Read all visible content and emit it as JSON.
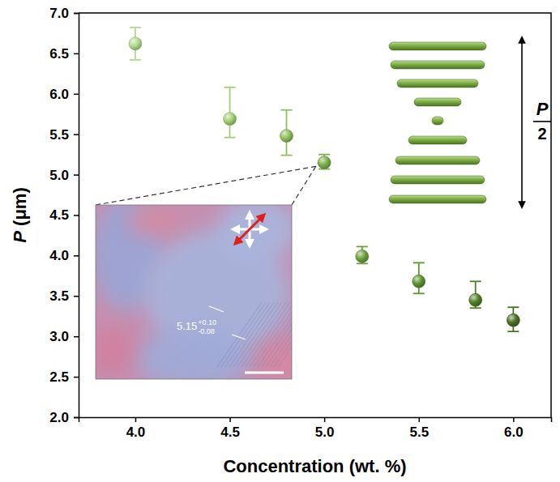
{
  "chart_data": {
    "type": "scatter",
    "x_label": "Concentration (wt. %)",
    "y_label": "P (μm)",
    "x": [
      4.0,
      4.5,
      4.8,
      5.0,
      5.2,
      5.5,
      5.8,
      6.0
    ],
    "values": [
      6.62,
      5.69,
      5.48,
      5.15,
      3.99,
      3.68,
      3.45,
      3.2
    ],
    "error_plus": [
      0.2,
      0.39,
      0.32,
      0.1,
      0.12,
      0.23,
      0.23,
      0.16
    ],
    "error_minus": [
      0.2,
      0.23,
      0.24,
      0.08,
      0.09,
      0.15,
      0.1,
      0.14
    ],
    "colors": [
      "#b3dc8c",
      "#a3d075",
      "#8fc05c",
      "#7db04b",
      "#6ca23d",
      "#5e9331",
      "#527f29",
      "#4a7024"
    ],
    "marker": "circle",
    "xlim": [
      3.7,
      6.2
    ],
    "xticks": [
      {
        "value": 4,
        "label": "4.0"
      },
      4.5,
      {
        "value": 5,
        "label": "5.0"
      },
      5.5,
      {
        "value": 6,
        "label": "6.0"
      }
    ],
    "ylim": [
      2,
      7
    ],
    "yticks": [
      {
        "value": 2,
        "label": "2.0"
      },
      2.5,
      {
        "value": 3,
        "label": "3.0"
      },
      3.5,
      {
        "value": 4,
        "label": "4.0"
      },
      4.5,
      {
        "value": 5,
        "label": "5.0"
      },
      5.5,
      {
        "value": 6,
        "label": "6.0"
      },
      6.5,
      {
        "value": 7,
        "label": "7.0"
      }
    ],
    "grid": false,
    "inset": {
      "label": "5.15",
      "label_upper": "+0.10",
      "label_lower": "-0.08"
    },
    "schematic": {
      "label_numerator": "P",
      "label_denominator": "2"
    }
  }
}
